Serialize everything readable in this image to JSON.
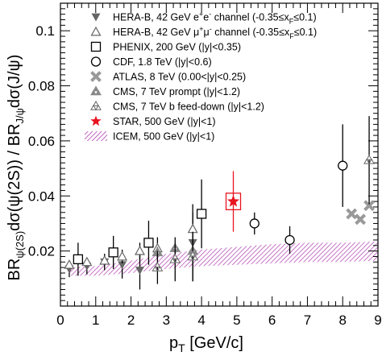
{
  "chart_data": {
    "type": "scatter",
    "title": "",
    "xlabel": {
      "main": "p",
      "sub": "T",
      "rest": " [GeV/c]"
    },
    "ylabel": {
      "p1": "BR",
      "s1": "ψ(2S)",
      "p2": "dσ(ψ(2S)) / BR",
      "s2": "J/ψ",
      "p3": "dσ(J/ψ)"
    },
    "xlim": [
      0,
      9
    ],
    "ylim": [
      0,
      0.11
    ],
    "x_ticks": [
      "0",
      "1",
      "2",
      "3",
      "4",
      "5",
      "6",
      "7",
      "8",
      "9"
    ],
    "y_ticks": [
      {
        "v": 0.02,
        "label": "0.02"
      },
      {
        "v": 0.04,
        "label": "0.04"
      },
      {
        "v": 0.06,
        "label": "0.06"
      },
      {
        "v": 0.08,
        "label": "0.08"
      },
      {
        "v": 0.1,
        "label": "0.1"
      }
    ],
    "legend_position": "top-right",
    "series": [
      {
        "name": "HERA-B, 42 GeV e⁺e⁻ channel (-0.35≤x_F≤0.1)",
        "marker": "tri-down-filled",
        "color": "#666666",
        "points": [
          {
            "x": 0.25,
            "y": 0.0135,
            "err": 0.003
          },
          {
            "x": 0.75,
            "y": 0.0145,
            "err": 0.003
          },
          {
            "x": 1.25,
            "y": 0.016,
            "err": 0.003
          },
          {
            "x": 1.75,
            "y": 0.015,
            "err": 0.005
          },
          {
            "x": 2.25,
            "y": 0.013,
            "err": 0.007
          },
          {
            "x": 3.75,
            "y": 0.023,
            "err": 0.014
          }
        ]
      },
      {
        "name": "HERA-B, 42 GeV μ⁺μ⁻ channel (-0.35≤x_F≤0.1)",
        "marker": "tri-up-open",
        "color": "#666666",
        "points": [
          {
            "x": 0.25,
            "y": 0.015,
            "err": 0.0015
          },
          {
            "x": 0.75,
            "y": 0.016,
            "err": 0.0015
          },
          {
            "x": 1.25,
            "y": 0.0165,
            "err": 0.002
          },
          {
            "x": 1.75,
            "y": 0.018,
            "err": 0.0025
          },
          {
            "x": 2.25,
            "y": 0.02,
            "err": 0.003
          },
          {
            "x": 2.75,
            "y": 0.021,
            "err": 0.004
          },
          {
            "x": 3.75,
            "y": 0.028,
            "err": 0.006
          }
        ]
      },
      {
        "name": "PHENIX, 200 GeV (|y|<0.35)",
        "marker": "square-open",
        "color": "#000000",
        "points": [
          {
            "x": 0.5,
            "y": 0.017,
            "err": 0.006
          },
          {
            "x": 1.5,
            "y": 0.0195,
            "err": 0.006
          },
          {
            "x": 2.5,
            "y": 0.023,
            "err": 0.008
          },
          {
            "x": 4.0,
            "y": 0.0335,
            "err": 0.0125
          }
        ]
      },
      {
        "name": "CDF, 1.8 TeV (|y|<0.6)",
        "marker": "circle-open",
        "color": "#000000",
        "points": [
          {
            "x": 5.5,
            "y": 0.03,
            "err": 0.004
          },
          {
            "x": 6.5,
            "y": 0.024,
            "err": 0.005
          },
          {
            "x": 8.0,
            "y": 0.051,
            "err": 0.015
          }
        ]
      },
      {
        "name": "ATLAS, 8 TeV (0.00<|y|<0.25)",
        "marker": "cross",
        "color": "#999999",
        "points": [
          {
            "x": 8.25,
            "y": 0.0335,
            "err": 0.0005
          },
          {
            "x": 8.5,
            "y": 0.0315,
            "err": 0.0005
          },
          {
            "x": 8.75,
            "y": 0.0365,
            "err": 0.0005
          }
        ]
      },
      {
        "name": "CMS, 7 TeV prompt (|y|<1.2)",
        "marker": "tri-stack-filled",
        "color": "#888888",
        "points": [
          {
            "x": 2.75,
            "y": 0.0195,
            "err": 0.002
          },
          {
            "x": 3.25,
            "y": 0.021,
            "err": 0.002
          },
          {
            "x": 3.75,
            "y": 0.02,
            "err": 0.002
          }
        ]
      },
      {
        "name": "CMS, 7 TeV b feed-down (|y|<1.2)",
        "marker": "tri-stack-open",
        "color": "#666666",
        "points": [
          {
            "x": 2.75,
            "y": 0.014,
            "err": 0.006
          },
          {
            "x": 3.25,
            "y": 0.017,
            "err": 0.008
          },
          {
            "x": 3.75,
            "y": 0.018,
            "err": 0.009
          },
          {
            "x": 8.75,
            "y": 0.053,
            "err": 0.016
          }
        ]
      },
      {
        "name": "STAR, 500 GeV (|y|<1)",
        "marker": "star-filled",
        "color": "#e8141f",
        "points": [
          {
            "x": 4.9,
            "y": 0.038,
            "err": 0.011,
            "syst": 0.003
          }
        ]
      }
    ],
    "band": {
      "name": "ICEM, 500 GeV (|y|<1)",
      "color": "#b040b0",
      "x": [
        0.25,
        1.0,
        2.0,
        3.0,
        4.0,
        5.0,
        6.0,
        7.0,
        8.0,
        9.0
      ],
      "lower": [
        0.011,
        0.011,
        0.012,
        0.0135,
        0.0145,
        0.015,
        0.0155,
        0.016,
        0.016,
        0.0165
      ],
      "upper": [
        0.014,
        0.0145,
        0.0165,
        0.019,
        0.0205,
        0.0215,
        0.0225,
        0.023,
        0.023,
        0.0235
      ]
    }
  },
  "legend": {
    "entries": [
      {
        "key": "herab-ee",
        "text": "HERA-B, 42 GeV e",
        "sup": "+",
        "mid": "e",
        "sup2": "-",
        "tail": " channel (-0.35≤x",
        "sub": "F",
        "end": "≤0.1)"
      },
      {
        "key": "herab-mumu",
        "text": "HERA-B, 42 GeV μ",
        "sup": "+",
        "mid": "μ",
        "sup2": "-",
        "tail": " channel (-0.35≤x",
        "sub": "F",
        "end": "≤0.1)"
      },
      {
        "key": "phenix",
        "text": "PHENIX, 200 GeV (|y|<0.35)"
      },
      {
        "key": "cdf",
        "text": "CDF, 1.8 TeV (|y|<0.6)"
      },
      {
        "key": "atlas",
        "text": "ATLAS, 8 TeV (0.00<|y|<0.25)"
      },
      {
        "key": "cms-prompt",
        "text": "CMS, 7 TeV prompt (|y|<1.2)"
      },
      {
        "key": "cms-feeddown",
        "text": "CMS, 7 TeV b feed-down (|y|<1.2)"
      },
      {
        "key": "star",
        "text": "STAR, 500 GeV (|y|<1)"
      },
      {
        "key": "icem",
        "text": "ICEM, 500 GeV (|y|<1)"
      }
    ]
  }
}
